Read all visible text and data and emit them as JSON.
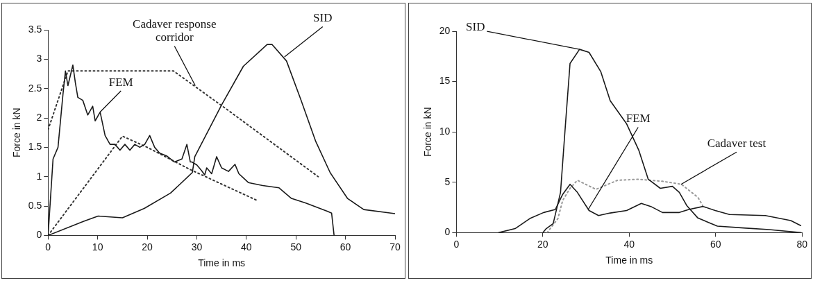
{
  "chart_data": [
    {
      "type": "line",
      "xlabel": "Time in ms",
      "ylabel": "Force in kN",
      "xlim": [
        0,
        70
      ],
      "ylim": [
        0,
        3.5
      ],
      "xticks": [
        0,
        10,
        20,
        30,
        40,
        50,
        60,
        70
      ],
      "yticks": [
        0,
        0.5,
        1,
        1.5,
        2,
        2.5,
        3,
        3.5
      ],
      "grid": false,
      "legend": false,
      "marker": "none",
      "annotations": [
        {
          "text": "FEM",
          "x": 10.5,
          "y": 2.1
        },
        {
          "text": "Cadaver response corridor",
          "x": 29.7,
          "y": 2.55
        },
        {
          "text": "SID",
          "x": 47.7,
          "y": 3.04
        }
      ],
      "series": [
        {
          "color": "#1a1a1a",
          "line_style": "solid",
          "x": [
            0,
            1,
            2,
            3,
            3.5,
            4,
            5,
            5.5,
            6,
            7,
            8,
            9,
            9.5,
            10.5,
            11.5,
            12.5,
            13.5,
            14.5,
            15.5,
            16.5,
            17.5,
            18.5,
            19.5,
            20.5,
            21.5,
            22.5,
            24,
            25.5,
            27,
            28,
            28.7,
            29,
            30,
            31,
            31.6,
            32,
            33,
            34,
            35,
            36.4,
            37.7,
            38.5,
            40.4,
            43.3,
            46.6,
            49.1,
            52,
            56.4,
            57.2,
            57.7
          ],
          "values": [
            0,
            1.3,
            1.5,
            2.4,
            2.8,
            2.55,
            2.9,
            2.6,
            2.35,
            2.3,
            2.05,
            2.2,
            1.95,
            2.1,
            1.7,
            1.55,
            1.55,
            1.45,
            1.55,
            1.45,
            1.55,
            1.5,
            1.55,
            1.7,
            1.5,
            1.4,
            1.35,
            1.25,
            1.3,
            1.55,
            1.25,
            1.25,
            1.2,
            1.1,
            1.03,
            1.15,
            1.05,
            1.34,
            1.15,
            1.09,
            1.21,
            1.05,
            0.9,
            0.85,
            0.81,
            0.63,
            0.55,
            0.41,
            0.38,
            0
          ]
        },
        {
          "color": "#1a1a1a",
          "line_style": "solid",
          "x": [
            0,
            7.2,
            10.1,
            15,
            19.4,
            24.7,
            29.1,
            29.6,
            35,
            39.4,
            44.2,
            45.2,
            48.1,
            51,
            54,
            56.9,
            60.4,
            63.7,
            70
          ],
          "values": [
            0,
            0.24,
            0.33,
            0.3,
            0.46,
            0.72,
            1.07,
            1.34,
            2.22,
            2.88,
            3.25,
            3.25,
            2.97,
            2.31,
            1.6,
            1.07,
            0.63,
            0.44,
            0.37
          ]
        },
        {
          "color": "#333333",
          "line_style": "dotted",
          "x": [
            0,
            4,
            6.3,
            25.3,
            36,
            54.5
          ],
          "values": [
            1.8,
            2.8,
            2.8,
            2.8,
            2.15,
            1.0
          ]
        },
        {
          "color": "#333333",
          "line_style": "dotted",
          "x": [
            0,
            15,
            20,
            28.7,
            42.3
          ],
          "values": [
            0,
            1.69,
            1.5,
            1.12,
            0.59
          ]
        }
      ]
    },
    {
      "type": "line",
      "xlabel": "Time in ms",
      "ylabel": "Force in kN",
      "xlim": [
        0,
        80
      ],
      "ylim": [
        0,
        20
      ],
      "xticks": [
        0,
        20,
        40,
        60,
        80
      ],
      "yticks": [
        0,
        5,
        10,
        15,
        20
      ],
      "grid": false,
      "legend": false,
      "marker": "none",
      "annotations": [
        {
          "text": "SID",
          "x": 28.5,
          "y": 18.2
        },
        {
          "text": "FEM",
          "x": 30.5,
          "y": 2.3
        },
        {
          "text": "Cadaver test",
          "x": 52,
          "y": 4.8
        }
      ],
      "series": [
        {
          "color": "#1a1a1a",
          "line_style": "solid",
          "x": [
            20,
            20.8,
            22.4,
            24.1,
            25.2,
            26.3,
            28.5,
            30.7,
            33.4,
            35.6,
            39.4,
            42.2,
            44.4,
            47.2,
            50,
            51.6,
            53.3,
            55.9,
            60.4,
            67,
            72.4,
            79.7
          ],
          "values": [
            0,
            0.4,
            0.9,
            4.0,
            10.5,
            16.8,
            18.2,
            17.9,
            16.0,
            13.1,
            10.8,
            8.2,
            5.3,
            4.4,
            4.6,
            4.0,
            2.7,
            1.45,
            0.65,
            0.45,
            0.3,
            0
          ]
        },
        {
          "color": "#1a1a1a",
          "line_style": "solid",
          "x": [
            9.8,
            13.6,
            17,
            20.2,
            22.9,
            24.6,
            26.3,
            28,
            30.7,
            32.9,
            35.6,
            39.4,
            42.8,
            45,
            47.7,
            51.6,
            53.8,
            57.1,
            59.9,
            63.2,
            71.5,
            77.4,
            79.7
          ],
          "values": [
            0,
            0.4,
            1.4,
            2.0,
            2.3,
            3.8,
            4.8,
            4.0,
            2.2,
            1.7,
            1.95,
            2.2,
            2.9,
            2.6,
            2.0,
            2.0,
            2.3,
            2.6,
            2.2,
            1.8,
            1.7,
            1.2,
            0.7
          ]
        },
        {
          "color": "#999999",
          "line_style": "dotted",
          "x": [
            21,
            23.5,
            24.6,
            26.3,
            28,
            32.3,
            37.3,
            42.2,
            47.7,
            52.1,
            55.9,
            57
          ],
          "values": [
            0,
            1.4,
            3.2,
            4.4,
            5.2,
            4.3,
            5.2,
            5.3,
            5.1,
            4.8,
            3.5,
            2.7
          ]
        }
      ]
    }
  ]
}
